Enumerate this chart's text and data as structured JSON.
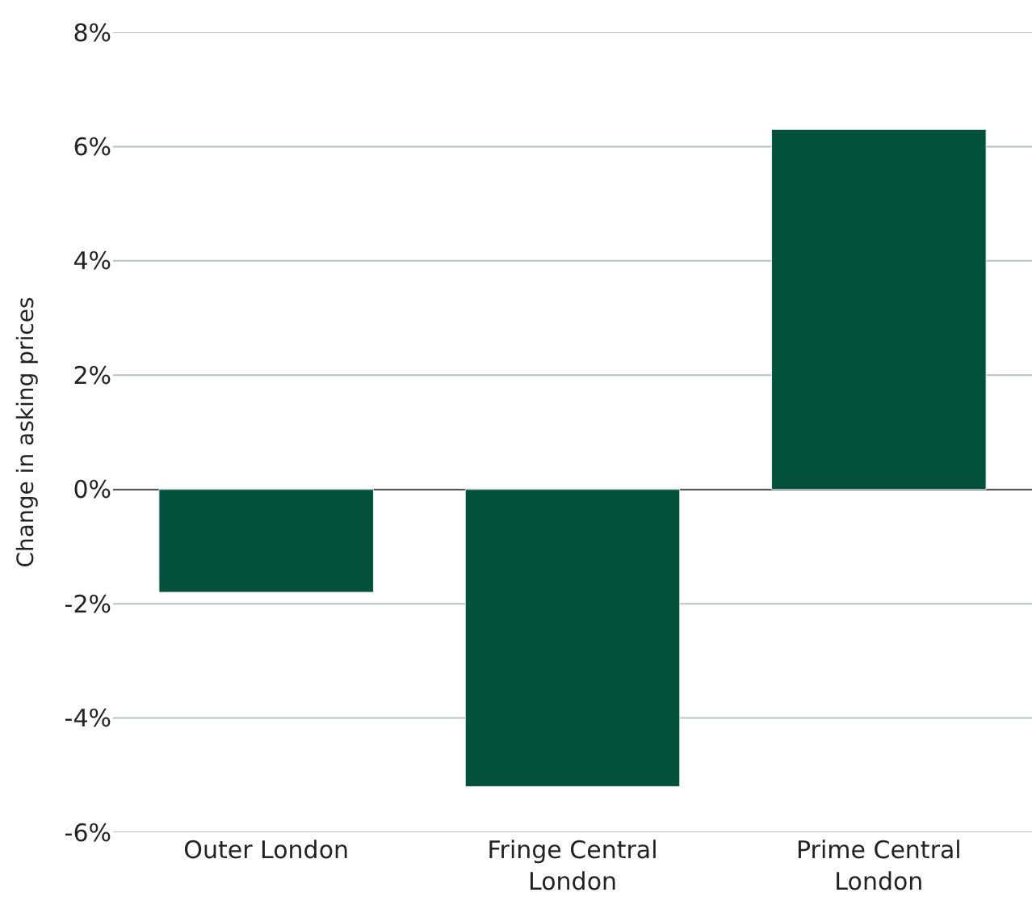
{
  "chart_data": {
    "type": "bar",
    "ylabel": "Change in asking prices",
    "categories": [
      "Outer London",
      "Fringe Central London",
      "Prime Central London"
    ],
    "values": [
      -1.8,
      -5.2,
      6.3
    ],
    "color": "#03513a",
    "ylim": [
      -6,
      8
    ],
    "yticks": [
      {
        "value": -6,
        "label": "-6%"
      },
      {
        "value": -4,
        "label": "-4%"
      },
      {
        "value": -2,
        "label": "-2%"
      },
      {
        "value": 0,
        "label": "0%"
      },
      {
        "value": 2,
        "label": "2%"
      },
      {
        "value": 4,
        "label": "4%"
      },
      {
        "value": 6,
        "label": "6%"
      },
      {
        "value": 8,
        "label": "8%"
      }
    ],
    "grid": "y"
  }
}
